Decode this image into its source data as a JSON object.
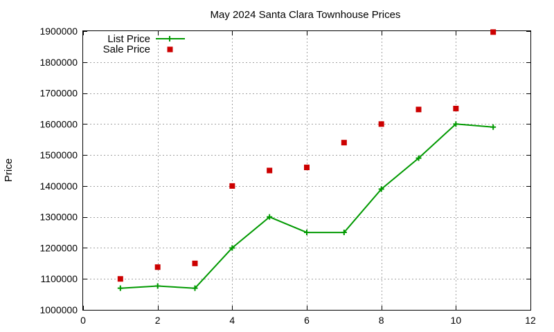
{
  "chart_data": {
    "type": "line",
    "title": "May 2024 Santa Clara Townhouse Prices",
    "xlabel": "",
    "ylabel": "Price",
    "xlim": [
      0,
      12
    ],
    "ylim": [
      1000000,
      1900000
    ],
    "x_ticks": [
      0,
      2,
      4,
      6,
      8,
      10,
      12
    ],
    "y_ticks": [
      1000000,
      1100000,
      1200000,
      1300000,
      1400000,
      1500000,
      1600000,
      1700000,
      1800000,
      1900000
    ],
    "grid": true,
    "legend_position": "top-left",
    "series": [
      {
        "name": "List Price",
        "style": "line-with-plus-markers",
        "color": "#009900",
        "x": [
          1,
          2,
          3,
          4,
          5,
          6,
          7,
          8,
          9,
          10,
          11
        ],
        "values": [
          1070000,
          1077000,
          1070000,
          1200000,
          1300000,
          1250000,
          1250000,
          1390000,
          1490000,
          1600000,
          1590000
        ]
      },
      {
        "name": "Sale Price",
        "style": "square-markers",
        "color": "#cc0000",
        "x": [
          1,
          2,
          3,
          4,
          5,
          6,
          7,
          8,
          9,
          10,
          11
        ],
        "values": [
          1100000,
          1138000,
          1150000,
          1400000,
          1450000,
          1460000,
          1540000,
          1600000,
          1647000,
          1650000,
          1897000
        ]
      }
    ]
  }
}
